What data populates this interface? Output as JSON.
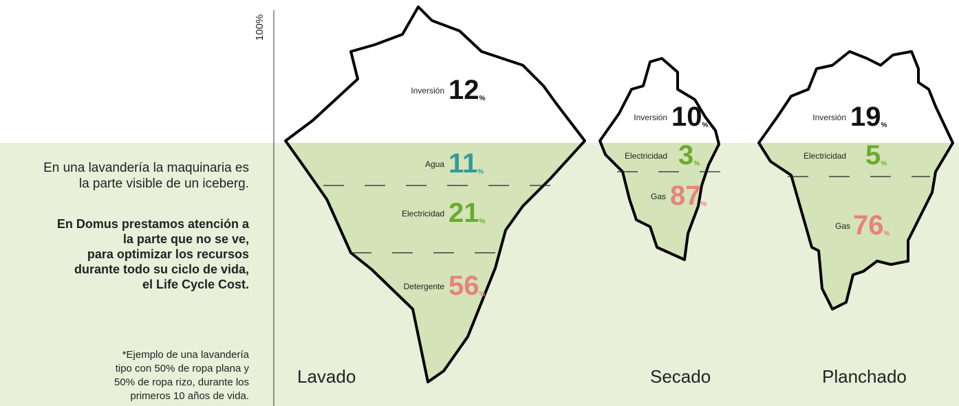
{
  "axis_label": "100%",
  "intro": [
    "En una lavandería la maquinaria es",
    "la parte visible de un iceberg."
  ],
  "emphasis": [
    "En Domus prestamos atención a",
    "la parte que no se ve,",
    "para optimizar los recursos",
    "durante todo su ciclo de vida,",
    "el Life Cycle Cost."
  ],
  "footnote": [
    "*Ejemplo de una lavandería",
    "tipo con 50% de ropa plana y",
    "50% de ropa rizo, durante los",
    "primeros 10 años de vida."
  ],
  "unit": "%",
  "icebergs": [
    {
      "name": "Lavado",
      "segments": [
        {
          "label": "Inversión",
          "value": 12,
          "color": "#111111"
        },
        {
          "label": "Agua",
          "value": 11,
          "color": "#2f9c9a"
        },
        {
          "label": "Electricidad",
          "value": 21,
          "color": "#6aab2e"
        },
        {
          "label": "Detergente",
          "value": 56,
          "color": "#e8827b"
        }
      ]
    },
    {
      "name": "Secado",
      "segments": [
        {
          "label": "Inversión",
          "value": 10,
          "color": "#111111"
        },
        {
          "label": "Electricidad",
          "value": 3,
          "color": "#6aab2e"
        },
        {
          "label": "Gas",
          "value": 87,
          "color": "#e8827b"
        }
      ]
    },
    {
      "name": "Planchado",
      "segments": [
        {
          "label": "Inversión",
          "value": 19,
          "color": "#111111"
        },
        {
          "label": "Electricidad",
          "value": 5,
          "color": "#6aab2e"
        },
        {
          "label": "Gas",
          "value": 76,
          "color": "#e8827b"
        }
      ]
    }
  ]
}
